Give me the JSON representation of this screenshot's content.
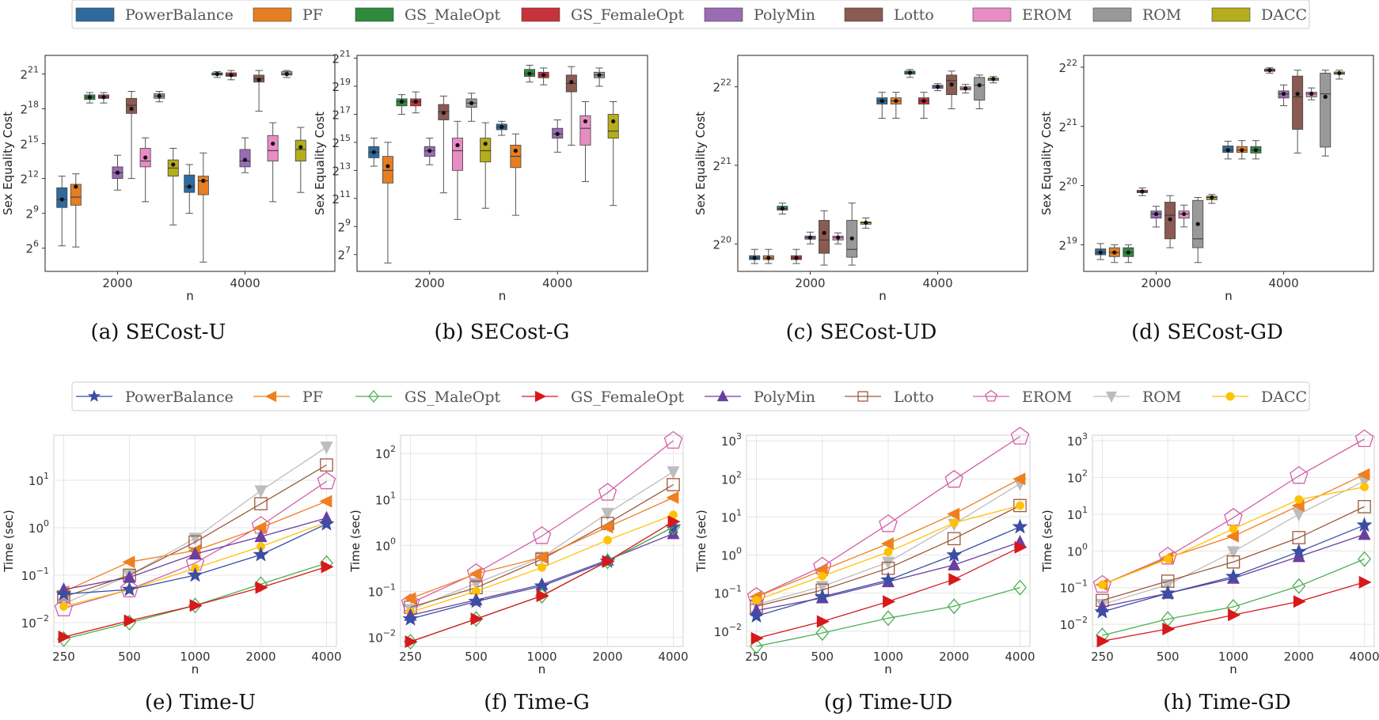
{
  "colors": {
    "PowerBalance": "#2e6b9c",
    "PF": "#e67e22",
    "GS_MaleOpt": "#2e8b3e",
    "GS_FemaleOpt": "#c8323a",
    "PolyMin": "#9b6bb5",
    "Lotto": "#8b5a52",
    "EROM": "#e88cc4",
    "ROM": "#999999",
    "DACC": "#b5ad1b"
  },
  "line_colors": {
    "PowerBalance": "#3b4ea3",
    "PF": "#ef7f1f",
    "GS_MaleOpt": "#4caf50",
    "GS_FemaleOpt": "#d7191c",
    "PolyMin": "#6b3fa0",
    "Lotto": "#9c5a3c",
    "EROM": "#d45fa8",
    "ROM": "#bdbdbd",
    "DACC": "#ffc107"
  },
  "legend_top": {
    "items": [
      "PowerBalance",
      "PF",
      "GS_MaleOpt",
      "GS_FemaleOpt",
      "PolyMin",
      "Lotto",
      "EROM",
      "ROM",
      "DACC"
    ],
    "labels": [
      "PowerBalance",
      "PF",
      "GS_MaleOpt",
      "GS_FemaleOpt",
      "PolyMin",
      "Lotto",
      "EROM",
      "ROM",
      "DACC"
    ]
  },
  "legend_bottom": {
    "items": [
      "PowerBalance",
      "PF",
      "GS_MaleOpt",
      "GS_FemaleOpt",
      "PolyMin",
      "Lotto",
      "EROM",
      "ROM",
      "DACC"
    ],
    "labels": [
      "PowerBalance",
      "PF",
      "GS_MaleOpt",
      "GS_FemaleOpt",
      "PolyMin",
      "Lotto",
      "EROM",
      "ROM",
      "DACC"
    ],
    "markers": [
      "star",
      "tri-left",
      "diamond",
      "tri-right",
      "tri-up",
      "square",
      "pentagon",
      "tri-down",
      "circle"
    ]
  },
  "chart_data": [
    {
      "id": "a",
      "type": "box",
      "caption": "(a) SECost-U",
      "xlabel": "n",
      "ylabel": "Sex Equality Cost",
      "categories": [
        "2000",
        "4000"
      ],
      "ylim_log2": [
        4,
        22.6
      ],
      "yticks": [
        6,
        9,
        12,
        15,
        18,
        21
      ],
      "series": {
        "PowerBalance": [
          [
            6.2,
            9.5,
            10.2,
            11.2,
            12.2,
            10.2
          ],
          [
            9.0,
            10.8,
            11.3,
            12.3,
            13.2,
            11.3
          ]
        ],
        "PF": [
          [
            6.1,
            9.7,
            10.4,
            11.5,
            12.4,
            11.3
          ],
          [
            4.8,
            10.6,
            11.8,
            12.2,
            14.2,
            11.8
          ]
        ],
        "GS_MaleOpt": [
          [
            18.5,
            18.8,
            19.0,
            19.2,
            19.4,
            19.0
          ],
          [
            20.7,
            20.9,
            21.0,
            21.1,
            21.2,
            21.0
          ]
        ],
        "GS_FemaleOpt": [
          [
            18.5,
            18.9,
            19.0,
            19.2,
            19.4,
            19.0
          ],
          [
            20.5,
            20.8,
            20.9,
            21.1,
            21.3,
            20.9
          ]
        ],
        "PolyMin": [
          [
            11.0,
            12.0,
            12.5,
            13.0,
            14.0,
            12.5
          ],
          [
            12.5,
            13.0,
            13.5,
            14.5,
            15.5,
            13.6
          ]
        ],
        "Lotto": [
          [
            12.0,
            17.6,
            18.3,
            18.9,
            19.5,
            18.0
          ],
          [
            17.8,
            20.3,
            20.6,
            20.9,
            21.3,
            20.5
          ]
        ],
        "EROM": [
          [
            10.0,
            13.0,
            13.5,
            14.6,
            15.5,
            13.8
          ],
          [
            10.0,
            13.5,
            14.4,
            15.7,
            16.8,
            15.0
          ]
        ],
        "ROM": [
          [
            18.6,
            18.9,
            19.1,
            19.3,
            19.5,
            19.1
          ],
          [
            20.7,
            20.9,
            21.0,
            21.2,
            21.3,
            21.0
          ]
        ],
        "DACC": [
          [
            8.0,
            12.2,
            12.9,
            13.6,
            14.6,
            13.2
          ],
          [
            10.8,
            13.5,
            14.5,
            15.3,
            16.4,
            14.7
          ]
        ]
      }
    },
    {
      "id": "b",
      "type": "box",
      "caption": "(b) SECost-G",
      "xlabel": "n",
      "ylabel": "Sex Equality Cost",
      "categories": [
        "2000",
        "4000"
      ],
      "ylim_log2": [
        5.8,
        21.2
      ],
      "yticks": [
        7,
        9,
        11,
        13,
        15,
        17,
        19,
        21
      ],
      "series": {
        "PowerBalance": [
          [
            13.3,
            13.9,
            14.3,
            14.7,
            15.3,
            14.3
          ],
          [
            15.5,
            15.9,
            16.1,
            16.3,
            16.5,
            16.1
          ]
        ],
        "PF": [
          [
            6.4,
            12.1,
            13.0,
            14.0,
            15.0,
            13.3
          ],
          [
            9.8,
            13.2,
            14.0,
            14.8,
            15.6,
            14.4
          ]
        ],
        "GS_MaleOpt": [
          [
            17.0,
            17.6,
            17.9,
            18.1,
            18.4,
            17.9
          ],
          [
            19.3,
            19.7,
            19.9,
            20.2,
            20.5,
            19.9
          ]
        ],
        "GS_FemaleOpt": [
          [
            17.1,
            17.6,
            17.9,
            18.1,
            18.6,
            17.9
          ],
          [
            19.1,
            19.6,
            19.8,
            20.0,
            20.3,
            19.8
          ]
        ],
        "PolyMin": [
          [
            13.4,
            14.0,
            14.4,
            14.7,
            15.3,
            14.4
          ],
          [
            14.3,
            15.3,
            15.6,
            16.0,
            16.6,
            15.6
          ]
        ],
        "Lotto": [
          [
            11.4,
            16.6,
            17.2,
            17.7,
            18.3,
            17.1
          ],
          [
            14.8,
            18.6,
            19.2,
            19.8,
            20.4,
            19.3
          ]
        ],
        "EROM": [
          [
            9.5,
            13.0,
            14.4,
            15.3,
            16.5,
            14.8
          ],
          [
            12.2,
            14.8,
            16.0,
            16.9,
            17.9,
            16.5
          ]
        ],
        "ROM": [
          [
            16.5,
            17.5,
            17.8,
            18.1,
            18.5,
            17.8
          ],
          [
            19.0,
            19.6,
            19.8,
            20.0,
            20.3,
            19.8
          ]
        ],
        "DACC": [
          [
            10.3,
            13.6,
            14.4,
            15.3,
            16.4,
            14.9
          ],
          [
            10.5,
            15.3,
            15.8,
            17.0,
            17.9,
            16.5
          ]
        ]
      }
    },
    {
      "id": "c",
      "type": "box",
      "caption": "(c) SECost-UD",
      "xlabel": "n",
      "ylabel": "Sex Equality Cost",
      "categories": [
        "2000",
        "4000"
      ],
      "ylim_log2": [
        19.65,
        22.4
      ],
      "yticks": [
        20,
        21,
        22
      ],
      "series": {
        "PowerBalance": [
          [
            19.75,
            19.8,
            19.82,
            19.85,
            19.93,
            19.82
          ],
          [
            21.6,
            21.78,
            21.82,
            21.86,
            21.93,
            21.82
          ]
        ],
        "PF": [
          [
            19.75,
            19.8,
            19.82,
            19.85,
            19.93,
            19.82
          ],
          [
            21.6,
            21.78,
            21.82,
            21.86,
            21.93,
            21.82
          ]
        ],
        "GS_MaleOpt": [
          [
            20.38,
            20.43,
            20.45,
            20.48,
            20.52,
            20.45
          ],
          [
            22.12,
            22.16,
            22.18,
            22.2,
            22.22,
            22.18
          ]
        ],
        "GS_FemaleOpt": [
          [
            19.75,
            19.8,
            19.82,
            19.85,
            19.93,
            19.82
          ],
          [
            21.6,
            21.78,
            21.82,
            21.86,
            21.93,
            21.82
          ]
        ],
        "PolyMin": [
          [
            20.0,
            20.06,
            20.08,
            20.1,
            20.15,
            20.08
          ],
          [
            21.95,
            21.98,
            22.0,
            22.02,
            22.04,
            22.0
          ]
        ],
        "Lotto": [
          [
            19.73,
            19.88,
            20.05,
            20.3,
            20.42,
            20.14
          ],
          [
            21.72,
            21.9,
            22.08,
            22.15,
            22.2,
            22.03
          ]
        ],
        "EROM": [
          [
            20.0,
            20.05,
            20.08,
            20.1,
            20.14,
            20.08
          ],
          [
            21.92,
            21.96,
            21.98,
            22.0,
            22.03,
            21.98
          ]
        ],
        "ROM": [
          [
            19.73,
            19.83,
            19.93,
            20.3,
            20.52,
            20.07
          ],
          [
            21.72,
            21.83,
            22.02,
            22.12,
            22.15,
            22.02
          ]
        ],
        "DACC": [
          [
            20.2,
            20.25,
            20.27,
            20.28,
            20.33,
            20.27
          ],
          [
            22.05,
            22.08,
            22.1,
            22.11,
            22.13,
            22.1
          ]
        ]
      }
    },
    {
      "id": "d",
      "type": "box",
      "caption": "(d) SECost-GD",
      "xlabel": "n",
      "ylabel": "Sex Equality Cost",
      "categories": [
        "2000",
        "4000"
      ],
      "ylim_log2": [
        18.55,
        22.2
      ],
      "yticks": [
        19,
        20,
        21,
        22
      ],
      "series": {
        "PowerBalance": [
          [
            18.75,
            18.83,
            18.87,
            18.93,
            19.02,
            18.87
          ],
          [
            20.45,
            20.56,
            20.6,
            20.67,
            20.75,
            20.6
          ]
        ],
        "PF": [
          [
            18.7,
            18.8,
            18.87,
            18.95,
            19.0,
            18.87
          ],
          [
            20.45,
            20.56,
            20.6,
            20.66,
            20.76,
            20.6
          ]
        ],
        "GS_MaleOpt": [
          [
            18.7,
            18.8,
            18.87,
            18.95,
            19.0,
            18.87
          ],
          [
            20.45,
            20.55,
            20.6,
            20.66,
            20.76,
            20.6
          ]
        ],
        "GS_FemaleOpt": [
          [
            19.83,
            19.88,
            19.9,
            19.92,
            19.96,
            19.9
          ],
          [
            21.9,
            21.93,
            21.95,
            21.97,
            21.99,
            21.95
          ]
        ],
        "PolyMin": [
          [
            19.3,
            19.45,
            19.52,
            19.57,
            19.65,
            19.52
          ],
          [
            21.35,
            21.48,
            21.55,
            21.6,
            21.7,
            21.55
          ]
        ],
        "Lotto": [
          [
            18.95,
            19.1,
            19.5,
            19.72,
            19.83,
            19.43
          ],
          [
            20.55,
            20.95,
            21.5,
            21.85,
            21.95,
            21.55
          ]
        ],
        "EROM": [
          [
            19.3,
            19.45,
            19.52,
            19.57,
            19.67,
            19.52
          ],
          [
            21.45,
            21.5,
            21.55,
            21.58,
            21.65,
            21.55
          ]
        ],
        "ROM": [
          [
            18.7,
            18.95,
            19.1,
            19.75,
            19.8,
            19.35
          ],
          [
            20.5,
            20.65,
            21.55,
            21.9,
            21.95,
            21.5
          ]
        ],
        "DACC": [
          [
            19.7,
            19.76,
            19.8,
            19.82,
            19.85,
            19.8
          ],
          [
            21.8,
            21.88,
            21.9,
            21.92,
            21.95,
            21.9
          ]
        ]
      }
    },
    {
      "id": "e",
      "type": "line",
      "caption": "(e) Time-U",
      "xlabel": "n",
      "ylabel": "Time (sec)",
      "categories": [
        "250",
        "500",
        "1000",
        "2000",
        "4000"
      ],
      "ylim_log10": [
        -2.5,
        1.95
      ],
      "yticks": [
        -2,
        -1,
        0,
        1
      ],
      "series": {
        "PowerBalance": [
          0.04,
          0.05,
          0.1,
          0.27,
          1.2
        ],
        "PF": [
          0.045,
          0.19,
          0.33,
          1.0,
          3.6
        ],
        "GS_MaleOpt": [
          0.0045,
          0.01,
          0.023,
          0.065,
          0.18
        ],
        "GS_FemaleOpt": [
          0.005,
          0.011,
          0.023,
          0.055,
          0.15
        ],
        "PolyMin": [
          0.05,
          0.09,
          0.28,
          0.65,
          1.6
        ],
        "Lotto": [
          0.035,
          0.1,
          0.5,
          3.2,
          21
        ],
        "EROM": [
          0.02,
          0.05,
          0.18,
          1.1,
          9.5
        ],
        "ROM": [
          0.025,
          0.1,
          0.6,
          6.0,
          50
        ],
        "DACC": [
          0.022,
          0.05,
          0.14,
          0.4,
          1.3
        ]
      }
    },
    {
      "id": "f",
      "type": "line",
      "caption": "(f) Time-G",
      "xlabel": "n",
      "ylabel": "Time (sec)",
      "categories": [
        "250",
        "500",
        "1000",
        "2000",
        "4000"
      ],
      "ylim_log10": [
        -2.2,
        2.4
      ],
      "yticks": [
        -2,
        -1,
        0,
        1,
        2
      ],
      "series": {
        "PowerBalance": [
          0.025,
          0.06,
          0.13,
          0.45,
          2.5
        ],
        "PF": [
          0.07,
          0.24,
          0.55,
          2.5,
          11
        ],
        "GS_MaleOpt": [
          0.008,
          0.025,
          0.08,
          0.45,
          2.5
        ],
        "GS_FemaleOpt": [
          0.008,
          0.025,
          0.08,
          0.45,
          3.3
        ],
        "PolyMin": [
          0.03,
          0.065,
          0.14,
          0.48,
          1.8
        ],
        "Lotto": [
          0.045,
          0.12,
          0.5,
          3.0,
          21
        ],
        "EROM": [
          0.055,
          0.25,
          1.6,
          14,
          190
        ],
        "ROM": [
          0.04,
          0.15,
          0.55,
          5.0,
          40
        ],
        "DACC": [
          0.035,
          0.1,
          0.33,
          1.3,
          4.6
        ]
      }
    },
    {
      "id": "g",
      "type": "line",
      "caption": "(g) Time-UD",
      "xlabel": "n",
      "ylabel": "Time (sec)",
      "categories": [
        "250",
        "500",
        "1000",
        "2000",
        "4000"
      ],
      "ylim_log10": [
        -2.4,
        3.15
      ],
      "yticks": [
        -2,
        -1,
        0,
        1,
        2,
        3
      ],
      "series": {
        "PowerBalance": [
          0.025,
          0.08,
          0.22,
          1.0,
          5.5
        ],
        "PF": [
          0.08,
          0.4,
          2.0,
          12,
          100
        ],
        "GS_MaleOpt": [
          0.004,
          0.009,
          0.022,
          0.045,
          0.14
        ],
        "GS_FemaleOpt": [
          0.0065,
          0.018,
          0.06,
          0.23,
          1.6
        ],
        "PolyMin": [
          0.035,
          0.075,
          0.2,
          0.55,
          2.2
        ],
        "Lotto": [
          0.045,
          0.12,
          0.45,
          2.7,
          20
        ],
        "EROM": [
          0.08,
          0.5,
          6.5,
          95,
          1300
        ],
        "ROM": [
          0.05,
          0.15,
          0.65,
          6.5,
          75
        ],
        "DACC": [
          0.065,
          0.28,
          1.2,
          7.0,
          20
        ]
      }
    },
    {
      "id": "h",
      "type": "line",
      "caption": "(h) Time-GD",
      "xlabel": "n",
      "ylabel": "Time (sec)",
      "categories": [
        "250",
        "500",
        "1000",
        "2000",
        "4000"
      ],
      "ylim_log10": [
        -2.6,
        3.15
      ],
      "yticks": [
        -2,
        -1,
        0,
        1,
        2,
        3
      ],
      "series": {
        "PowerBalance": [
          0.022,
          0.07,
          0.2,
          0.95,
          5.0
        ],
        "PF": [
          0.12,
          0.65,
          2.5,
          17,
          120
        ],
        "GS_MaleOpt": [
          0.005,
          0.014,
          0.03,
          0.11,
          0.6
        ],
        "GS_FemaleOpt": [
          0.0035,
          0.0075,
          0.018,
          0.042,
          0.14
        ],
        "PolyMin": [
          0.03,
          0.07,
          0.18,
          0.7,
          2.8
        ],
        "Lotto": [
          0.045,
          0.15,
          0.5,
          2.3,
          16
        ],
        "EROM": [
          0.12,
          0.7,
          8.0,
          110,
          1100
        ],
        "ROM": [
          0.035,
          0.12,
          0.95,
          10,
          80
        ],
        "DACC": [
          0.12,
          0.6,
          4.0,
          25,
          55
        ]
      }
    }
  ]
}
